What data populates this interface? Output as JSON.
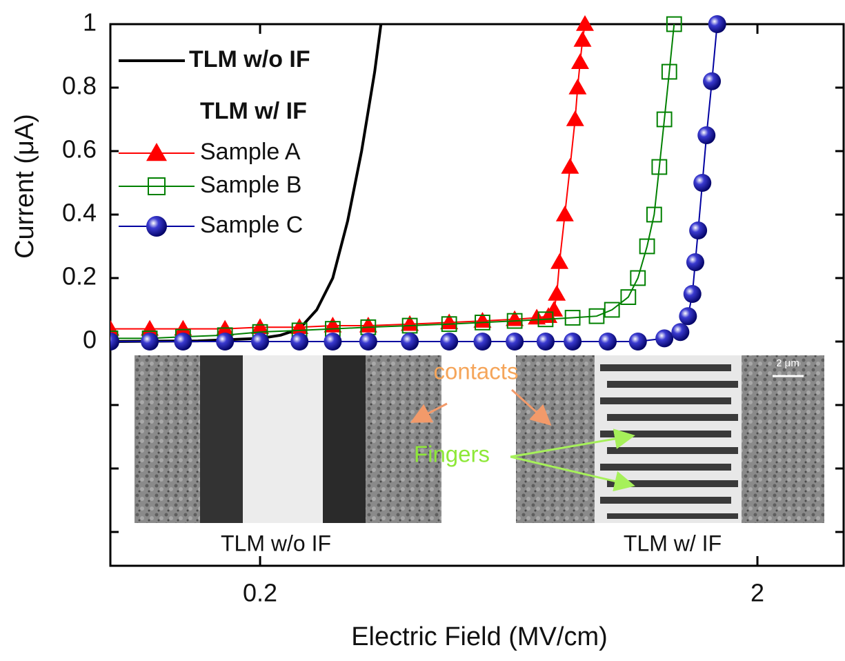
{
  "chart_data": {
    "type": "line",
    "x_label": "Electric Field (MV/cm)",
    "y_label": "Current (μA)",
    "xscale": "log",
    "xlim": [
      0.1,
      3
    ],
    "xticks": [
      0.2,
      2
    ],
    "ylim": [
      -0.7,
      1.0
    ],
    "yticks": [
      0.0,
      0.2,
      0.4,
      0.6,
      0.8,
      1.0
    ],
    "minor_yticks": [
      -0.2,
      -0.4,
      -0.6
    ],
    "legend_group_title": "TLM w/ IF",
    "series": [
      {
        "name": "TLM w/o IF",
        "color": "#000000",
        "marker": "none",
        "x": [
          0.1,
          0.15,
          0.2,
          0.22,
          0.24,
          0.26,
          0.28,
          0.3,
          0.32,
          0.34,
          0.35
        ],
        "values": [
          0,
          0.002,
          0.01,
          0.02,
          0.04,
          0.1,
          0.2,
          0.38,
          0.6,
          0.85,
          1.0
        ]
      },
      {
        "name": "Sample A",
        "color": "#ff0000",
        "marker": "triangle",
        "x": [
          0.1,
          0.12,
          0.14,
          0.17,
          0.2,
          0.24,
          0.28,
          0.33,
          0.4,
          0.48,
          0.56,
          0.65,
          0.72,
          0.76,
          0.78,
          0.79,
          0.8,
          0.82,
          0.84,
          0.86,
          0.87,
          0.88,
          0.89,
          0.9
        ],
        "values": [
          0.04,
          0.04,
          0.04,
          0.04,
          0.045,
          0.045,
          0.05,
          0.05,
          0.055,
          0.06,
          0.065,
          0.07,
          0.075,
          0.08,
          0.1,
          0.15,
          0.25,
          0.4,
          0.55,
          0.7,
          0.8,
          0.88,
          0.95,
          1.0
        ]
      },
      {
        "name": "Sample B",
        "color": "#008000",
        "marker": "square",
        "x": [
          0.1,
          0.12,
          0.14,
          0.17,
          0.2,
          0.24,
          0.28,
          0.33,
          0.4,
          0.48,
          0.56,
          0.65,
          0.75,
          0.85,
          0.95,
          1.02,
          1.1,
          1.15,
          1.2,
          1.24,
          1.27,
          1.3,
          1.33,
          1.36
        ],
        "values": [
          0.01,
          0.01,
          0.015,
          0.02,
          0.03,
          0.035,
          0.04,
          0.045,
          0.05,
          0.055,
          0.06,
          0.065,
          0.07,
          0.075,
          0.08,
          0.1,
          0.14,
          0.2,
          0.3,
          0.4,
          0.55,
          0.7,
          0.85,
          1.0
        ]
      },
      {
        "name": "Sample C",
        "color": "#0000a0",
        "marker": "circle",
        "x": [
          0.1,
          0.12,
          0.14,
          0.17,
          0.2,
          0.24,
          0.28,
          0.33,
          0.4,
          0.48,
          0.56,
          0.65,
          0.75,
          0.85,
          1.0,
          1.15,
          1.3,
          1.4,
          1.45,
          1.48,
          1.5,
          1.52,
          1.55,
          1.58,
          1.62,
          1.66
        ],
        "values": [
          0,
          0,
          0,
          0,
          0,
          0,
          0,
          0,
          0,
          0,
          0,
          0,
          0,
          0,
          0,
          0,
          0.01,
          0.03,
          0.08,
          0.15,
          0.25,
          0.35,
          0.5,
          0.65,
          0.82,
          1.0
        ]
      }
    ],
    "annotations": [
      "contacts",
      "Fingers",
      "2 μm",
      "TLM w/o IF",
      "TLM w/ IF"
    ]
  }
}
